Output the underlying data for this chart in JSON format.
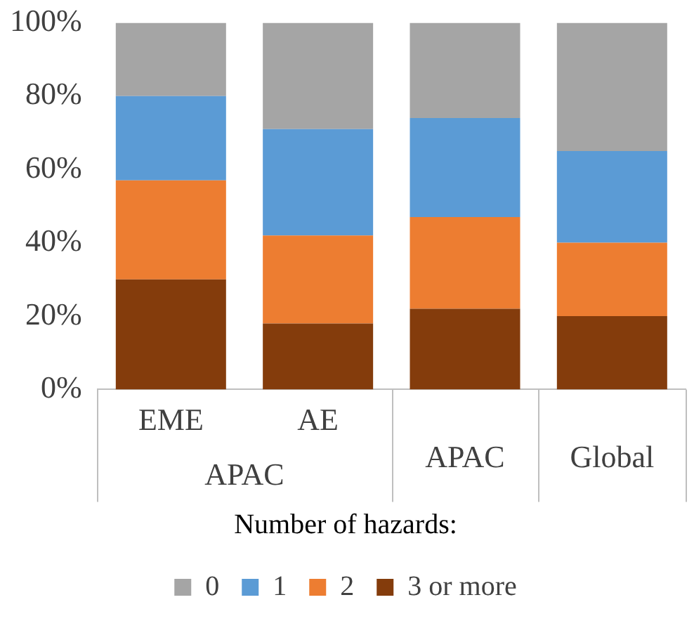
{
  "chart_data": {
    "type": "bar",
    "stacked": true,
    "categories": [
      "EME",
      "AE",
      "APAC",
      "Global"
    ],
    "series": [
      {
        "name": "3 or more",
        "color": "#843c0c",
        "values": [
          30,
          18,
          22,
          20
        ]
      },
      {
        "name": "2",
        "color": "#ed7d31",
        "values": [
          27,
          24,
          25,
          20
        ]
      },
      {
        "name": "1",
        "color": "#5b9bd5",
        "values": [
          23,
          29,
          27,
          25
        ]
      },
      {
        "name": "0",
        "color": "#a5a5a5",
        "values": [
          20,
          29,
          26,
          35
        ]
      }
    ],
    "ylim": [
      0,
      100
    ],
    "yticks": [
      {
        "value": 0,
        "label": "0%"
      },
      {
        "value": 20,
        "label": "20%"
      },
      {
        "value": 40,
        "label": "40%"
      },
      {
        "value": 60,
        "label": "60%"
      },
      {
        "value": 80,
        "label": "80%"
      },
      {
        "value": 100,
        "label": "100%"
      }
    ],
    "grid": false,
    "legend": "bottom",
    "legend_title": "Number of hazards:",
    "annotations": [
      "APAC"
    ]
  }
}
